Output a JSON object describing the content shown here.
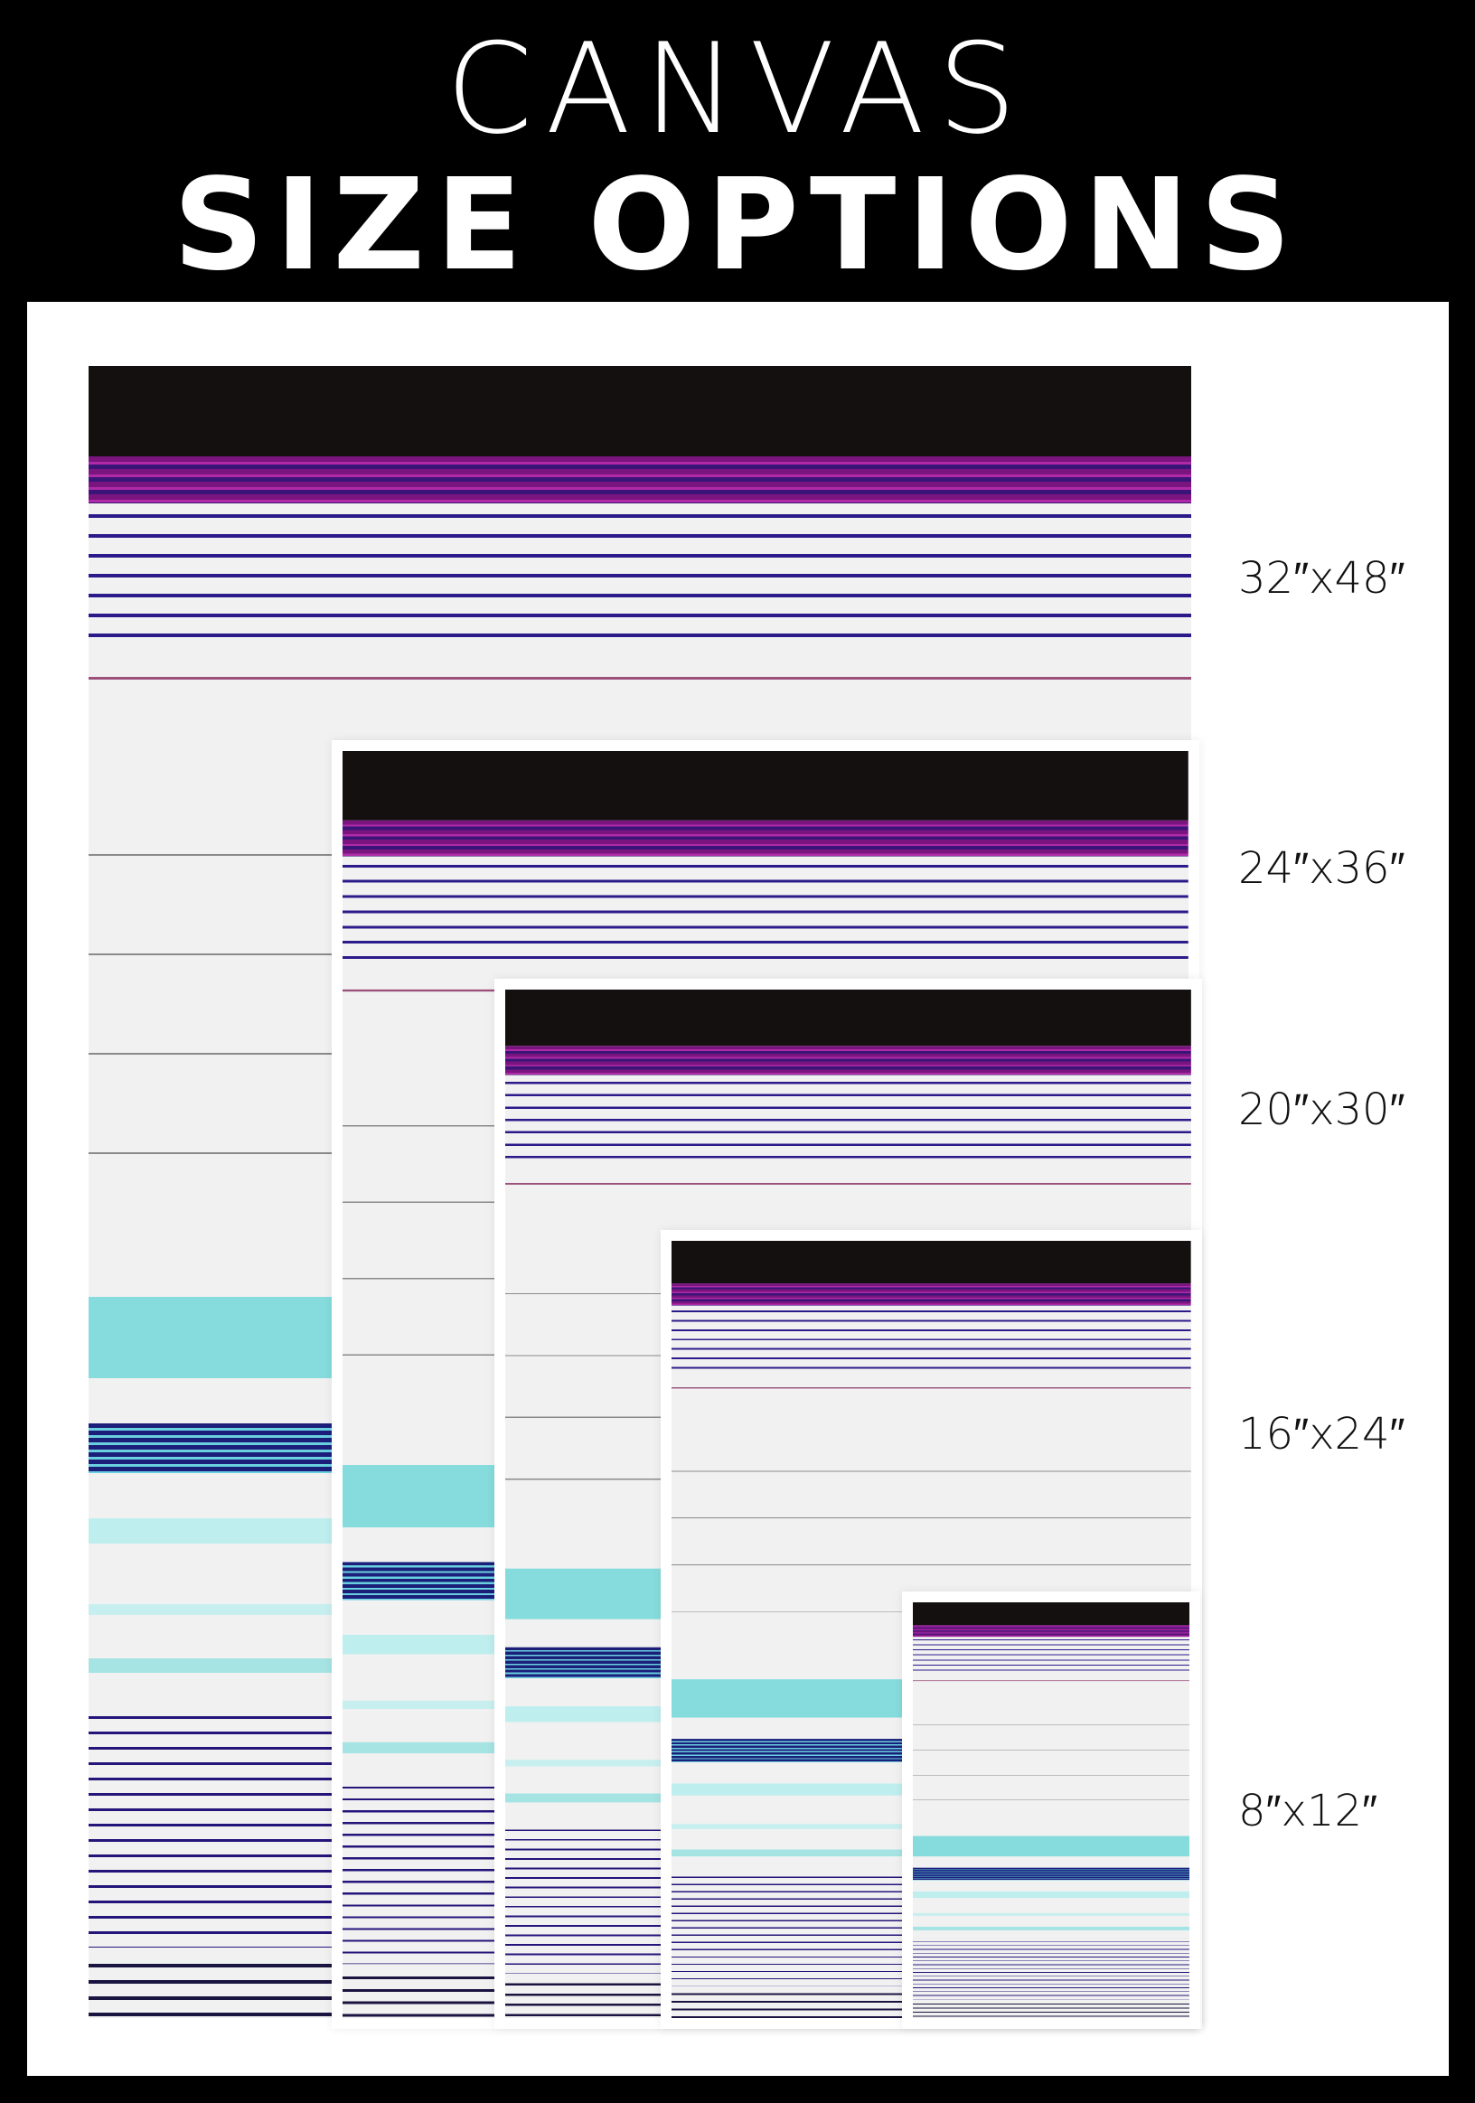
{
  "header": {
    "title_line1": "CANVAS",
    "title_line2": "SIZE OPTIONS"
  },
  "sizes": [
    {
      "label": "32″x48″"
    },
    {
      "label": "24″x36″"
    },
    {
      "label": "20″x30″"
    },
    {
      "label": "16″x24″"
    },
    {
      "label": "8″x12″"
    }
  ]
}
